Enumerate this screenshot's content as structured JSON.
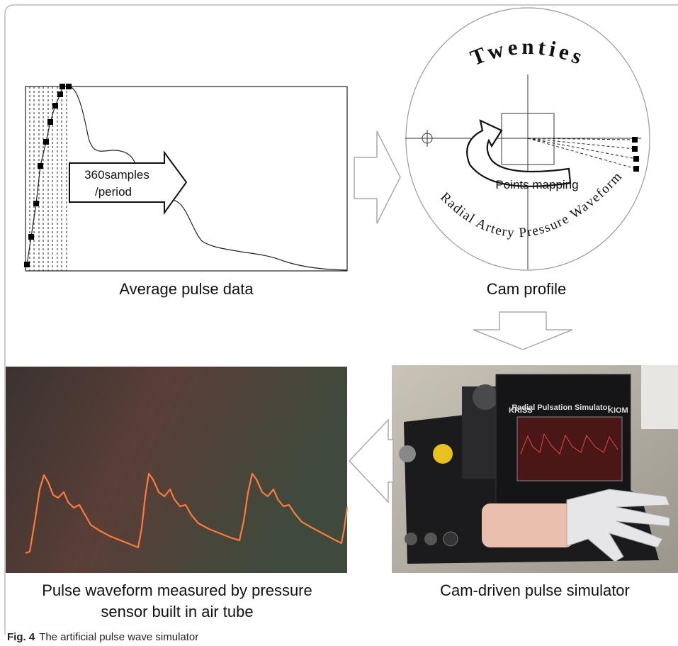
{
  "panels": [
    {
      "annotation": [
        "360samples",
        "/period"
      ],
      "label": "Average pulse data"
    },
    {
      "title": "Twenties",
      "annotation": "Points mapping",
      "curve_label": "Radial Artery Pressure Waveform",
      "label": "Cam profile"
    },
    {
      "label": "Cam-driven pulse simulator",
      "photo_text": [
        "KRISS",
        "Radial Pulsation Simulator",
        "KIOM"
      ]
    },
    {
      "label": [
        "Pulse waveform measured by pressure",
        "sensor built in air tube"
      ]
    }
  ],
  "caption": {
    "label": "Fig. 4",
    "text": "The artificial pulse wave simulator"
  }
}
